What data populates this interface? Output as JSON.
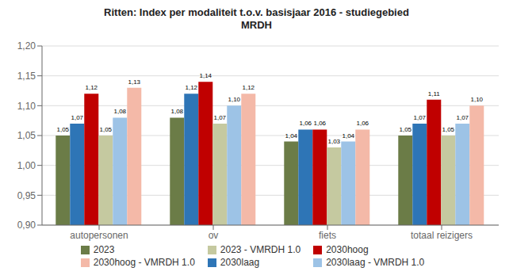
{
  "chart_data": {
    "type": "bar",
    "title": "Ritten: Index per modaliteit t.o.v. basisjaar 2016 - studiegebied\nMRDH",
    "categories": [
      "autopersonen",
      "ov",
      "fiets",
      "totaal reizigers"
    ],
    "series": [
      {
        "name": "2023",
        "color": "#6b7c47",
        "values": [
          1.05,
          1.08,
          1.04,
          1.05
        ],
        "value_labels": [
          "1,05",
          "1,08",
          "1,04",
          "1,05"
        ]
      },
      {
        "name": "2030laag",
        "color": "#2e75b6",
        "values": [
          1.07,
          1.12,
          1.06,
          1.07
        ],
        "value_labels": [
          "1,07",
          "1,12",
          "1,06",
          "1,07"
        ]
      },
      {
        "name": "2030hoog",
        "color": "#c00000",
        "values": [
          1.12,
          1.14,
          1.06,
          1.11
        ],
        "value_labels": [
          "1,12",
          "1,14",
          "1,06",
          "1,11"
        ]
      },
      {
        "name": "2023 - VMRDH 1.0",
        "color": "#c5c9a0",
        "values": [
          1.05,
          1.07,
          1.03,
          1.05
        ],
        "value_labels": [
          "1,05",
          "1,07",
          "1,03",
          "1,05"
        ]
      },
      {
        "name": "2030laag - VMRDH 1.0",
        "color": "#9dc3e6",
        "values": [
          1.08,
          1.1,
          1.04,
          1.07
        ],
        "value_labels": [
          "1,08",
          "1,10",
          "1,04",
          "1,07"
        ]
      },
      {
        "name": "2030hoog - VMRDH 1.0",
        "color": "#f4b9a8",
        "values": [
          1.13,
          1.12,
          1.06,
          1.1
        ],
        "value_labels": [
          "1,13",
          "1,12",
          "1,06",
          "1,10"
        ]
      }
    ],
    "ylim": [
      0.9,
      1.2
    ],
    "yticks": [
      {
        "value": 0.9,
        "label": "0,90"
      },
      {
        "value": 0.95,
        "label": "0,95"
      },
      {
        "value": 1.0,
        "label": "1,00"
      },
      {
        "value": 1.05,
        "label": "1,05"
      },
      {
        "value": 1.1,
        "label": "1,10"
      },
      {
        "value": 1.15,
        "label": "1,15"
      },
      {
        "value": 1.2,
        "label": "1,20"
      }
    ],
    "grid": true,
    "legend": "bottom",
    "data_labels": true
  }
}
